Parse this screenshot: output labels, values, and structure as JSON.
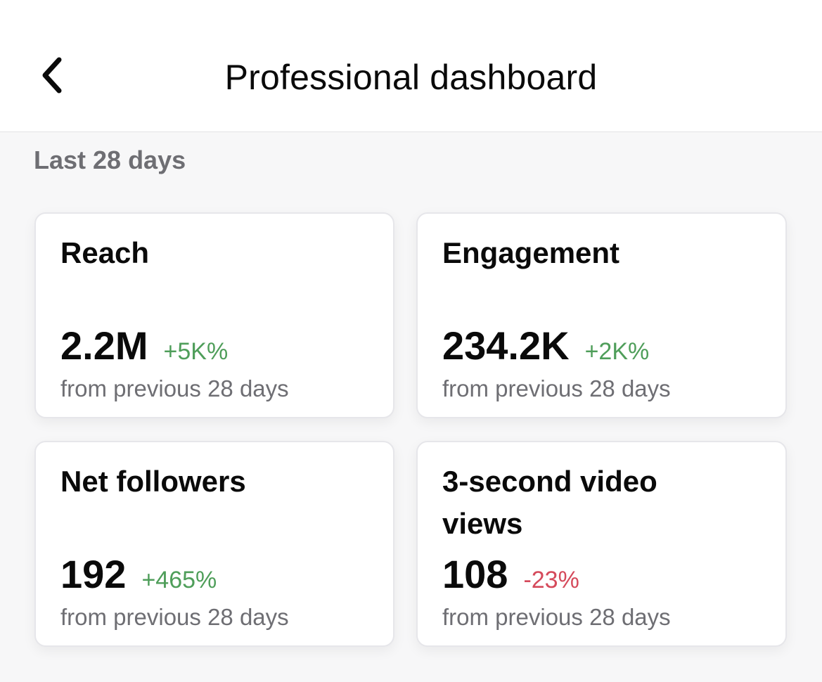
{
  "header": {
    "title": "Professional dashboard",
    "back_icon": "chevron-left-icon"
  },
  "period": {
    "label": "Last 28 days"
  },
  "cards": [
    {
      "title": "Reach",
      "value": "2.2M",
      "change": "+5K%",
      "trend": "positive",
      "subtext": "from previous 28 days"
    },
    {
      "title": "Engagement",
      "value": "234.2K",
      "change": "+2K%",
      "trend": "positive",
      "subtext": "from previous 28 days"
    },
    {
      "title": "Net followers",
      "value": "192",
      "change": "+465%",
      "trend": "positive",
      "subtext": "from previous 28 days"
    },
    {
      "title": "3-second video views",
      "value": "108",
      "change": "-23%",
      "trend": "negative",
      "subtext": "from previous 28 days"
    }
  ],
  "colors": {
    "positive": "#4f9e5a",
    "negative": "#d54a5b",
    "muted_text": "#6e6e73"
  }
}
